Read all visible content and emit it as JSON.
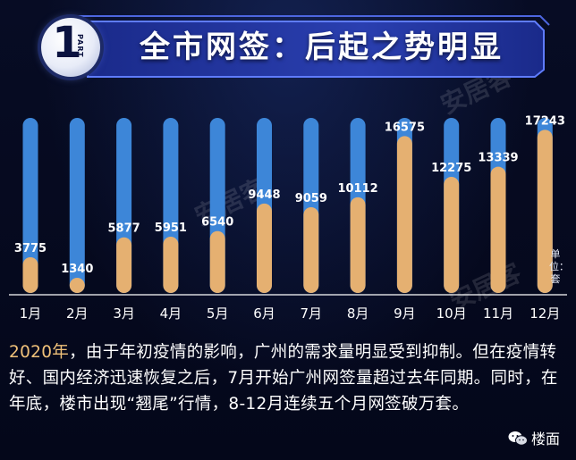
{
  "banner": {
    "part_number": "1",
    "part_label": "PART",
    "title": "全市网签：后起之势明显"
  },
  "watermark": "安居客",
  "chart_data": {
    "type": "bar",
    "categories": [
      "1月",
      "2月",
      "3月",
      "4月",
      "5月",
      "6月",
      "7月",
      "8月",
      "9月",
      "10月",
      "11月",
      "12月"
    ],
    "values": [
      3775,
      1340,
      5877,
      5951,
      6540,
      9448,
      9059,
      10112,
      16575,
      12275,
      13339,
      17243
    ],
    "ylim": [
      0,
      18500
    ],
    "unit": "单位：套",
    "grid": false,
    "legend": "none",
    "colors": {
      "filled": "#e5b071",
      "track": "#3d86d8"
    }
  },
  "description": {
    "year": "2020年",
    "text": "，由于年初疫情的影响，广州的需求量明显受到抑制。但在疫情转好、国内经济迅速恢复之后，7月开始广州网签量超过去年同期。同时，在年底，楼市出现“翘尾”行情，8-12月连续五个月网签破万套。"
  },
  "brand": {
    "icon": "wechat-icon",
    "name": "楼面"
  }
}
